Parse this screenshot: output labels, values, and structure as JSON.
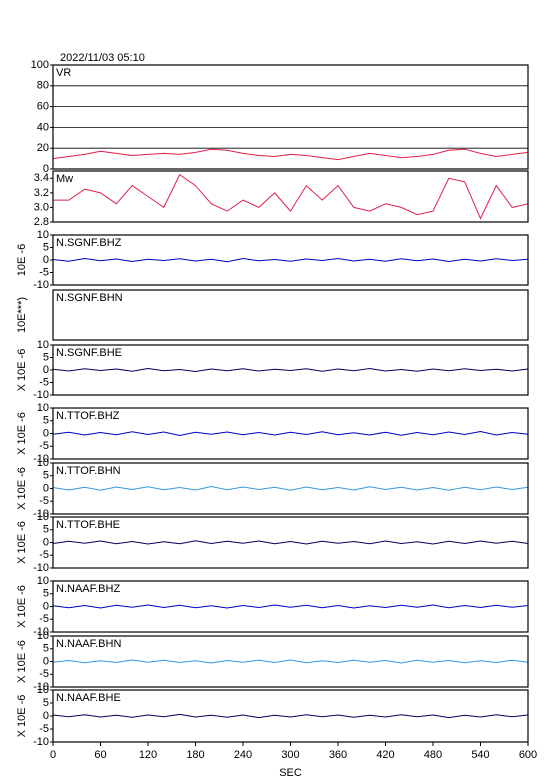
{
  "chart_data": [
    {
      "type": "line",
      "title": "VR",
      "header": "2022/11/03 05:10",
      "ylim": [
        0,
        100
      ],
      "yticks": [
        0,
        20,
        40,
        60,
        80,
        100
      ],
      "grid": true,
      "xlim": [
        0,
        600
      ],
      "x": [
        0,
        20,
        40,
        60,
        80,
        100,
        120,
        140,
        160,
        180,
        200,
        220,
        240,
        260,
        280,
        300,
        320,
        340,
        360,
        380,
        400,
        420,
        440,
        460,
        480,
        500,
        520,
        540,
        560,
        580,
        600
      ],
      "series": [
        {
          "color": "#e0204a",
          "values": [
            10,
            12,
            14,
            17,
            15,
            13,
            14,
            15,
            14,
            16,
            19,
            18,
            15,
            13,
            12,
            14,
            13,
            11,
            9,
            12,
            15,
            13,
            11,
            12,
            14,
            18,
            19,
            15,
            12,
            14,
            16
          ]
        }
      ]
    },
    {
      "type": "line",
      "title": "Mw",
      "ylim": [
        2.8,
        3.5
      ],
      "yticks": [
        2.8,
        {
          "value": 3,
          "label": "3.0"
        },
        3.2,
        3.4
      ],
      "xlim": [
        0,
        600
      ],
      "x": [
        0,
        20,
        40,
        60,
        80,
        100,
        120,
        140,
        160,
        180,
        200,
        220,
        240,
        260,
        280,
        300,
        320,
        340,
        360,
        380,
        400,
        420,
        440,
        460,
        480,
        500,
        520,
        540,
        560,
        580,
        600
      ],
      "series": [
        {
          "color": "#e0204a",
          "values": [
            3.1,
            3.1,
            3.25,
            3.2,
            3.05,
            3.3,
            3.15,
            3.0,
            3.45,
            3.3,
            3.05,
            2.95,
            3.1,
            3.0,
            3.2,
            2.95,
            3.3,
            3.1,
            3.3,
            3.0,
            2.95,
            3.05,
            3.0,
            2.9,
            2.95,
            3.4,
            3.35,
            2.85,
            3.3,
            3.0,
            3.05
          ]
        }
      ]
    },
    {
      "type": "line",
      "title": "N.SGNF.BHZ",
      "ylabel": "10E -6",
      "ylim": [
        -10,
        10
      ],
      "yticks": [
        -10,
        -5,
        0,
        5,
        10
      ],
      "xlim": [
        0,
        600
      ],
      "x": [
        0,
        20,
        40,
        60,
        80,
        100,
        120,
        140,
        160,
        180,
        200,
        220,
        240,
        260,
        280,
        300,
        320,
        340,
        360,
        380,
        400,
        420,
        440,
        460,
        480,
        500,
        520,
        540,
        560,
        580,
        600
      ],
      "series": [
        {
          "color": "#0000c0",
          "values": [
            0.2,
            -0.5,
            0.6,
            -0.3,
            0.4,
            -0.6,
            0.3,
            -0.2,
            0.5,
            -0.4,
            0.3,
            -0.7,
            0.6,
            -0.3,
            0.2,
            -0.5,
            0.4,
            -0.2,
            0.6,
            -0.4,
            0.3,
            -0.5,
            0.5,
            -0.3,
            0.4,
            -0.6,
            0.3,
            -0.4,
            0.5,
            -0.2,
            0.3
          ]
        }
      ]
    },
    {
      "type": "line",
      "title": "N.SGNF.BHN",
      "ylabel": "10E***)",
      "xlim": [
        0,
        600
      ]
    },
    {
      "type": "line",
      "title": "N.SGNF.BHE",
      "ylabel": "X 10E -6",
      "ylim": [
        -10,
        10
      ],
      "yticks": [
        -10,
        -5,
        0,
        5,
        10
      ],
      "xlim": [
        0,
        600
      ],
      "x": [
        0,
        20,
        40,
        60,
        80,
        100,
        120,
        140,
        160,
        180,
        200,
        220,
        240,
        260,
        280,
        300,
        320,
        340,
        360,
        380,
        400,
        420,
        440,
        460,
        480,
        500,
        520,
        540,
        560,
        580,
        600
      ],
      "series": [
        {
          "color": "#000060",
          "values": [
            0.3,
            -0.4,
            0.5,
            -0.2,
            0.4,
            -0.5,
            0.6,
            -0.3,
            0.2,
            -0.6,
            0.4,
            -0.3,
            0.5,
            -0.4,
            0.3,
            -0.2,
            0.5,
            -0.5,
            0.4,
            -0.3,
            0.6,
            -0.4,
            0.2,
            -0.5,
            0.4,
            -0.3,
            0.5,
            -0.2,
            0.3,
            -0.4,
            0.4
          ]
        }
      ]
    },
    {
      "type": "line",
      "title": "N.TTOF.BHZ",
      "ylabel": "X 10E -6",
      "ylim": [
        -10,
        10
      ],
      "yticks": [
        -10,
        -5,
        0,
        5,
        10
      ],
      "xlim": [
        0,
        600
      ],
      "x": [
        0,
        20,
        40,
        60,
        80,
        100,
        120,
        140,
        160,
        180,
        200,
        220,
        240,
        260,
        280,
        300,
        320,
        340,
        360,
        380,
        400,
        420,
        440,
        460,
        480,
        500,
        520,
        540,
        560,
        580,
        600
      ],
      "series": [
        {
          "color": "#0000c0",
          "values": [
            -0.3,
            0.5,
            -0.6,
            0.4,
            -0.5,
            0.7,
            -0.4,
            0.6,
            -0.8,
            0.5,
            -0.3,
            0.6,
            -0.5,
            0.4,
            -0.6,
            0.5,
            -0.4,
            0.7,
            -0.5,
            0.3,
            -0.6,
            0.5,
            -0.7,
            0.4,
            -0.5,
            0.6,
            -0.4,
            0.8,
            -0.6,
            0.4,
            -0.3
          ]
        }
      ]
    },
    {
      "type": "line",
      "title": "N.TTOF.BHN",
      "ylabel": "X 10E -6",
      "ylim": [
        -10,
        10
      ],
      "yticks": [
        -10,
        -5,
        0,
        5,
        10
      ],
      "xlim": [
        0,
        600
      ],
      "x": [
        0,
        20,
        40,
        60,
        80,
        100,
        120,
        140,
        160,
        180,
        200,
        220,
        240,
        260,
        280,
        300,
        320,
        340,
        360,
        380,
        400,
        420,
        440,
        460,
        480,
        500,
        520,
        540,
        560,
        580,
        600
      ],
      "series": [
        {
          "color": "#3399dd",
          "values": [
            0.4,
            -0.6,
            0.5,
            -0.7,
            0.6,
            -0.4,
            0.7,
            -0.5,
            0.4,
            -0.6,
            0.8,
            -0.5,
            0.6,
            -0.4,
            0.5,
            -0.7,
            0.6,
            -0.5,
            0.4,
            -0.6,
            0.7,
            -0.4,
            0.5,
            -0.6,
            0.4,
            -0.7,
            0.5,
            -0.5,
            0.6,
            -0.4,
            0.5
          ]
        }
      ]
    },
    {
      "type": "line",
      "title": "N.TTOF.BHE",
      "ylabel": "X 10E -6",
      "ylim": [
        -10,
        10
      ],
      "yticks": [
        -10,
        -5,
        0,
        5,
        10
      ],
      "xlim": [
        0,
        600
      ],
      "x": [
        0,
        20,
        40,
        60,
        80,
        100,
        120,
        140,
        160,
        180,
        200,
        220,
        240,
        260,
        280,
        300,
        320,
        340,
        360,
        380,
        400,
        420,
        440,
        460,
        480,
        500,
        520,
        540,
        560,
        580,
        600
      ],
      "series": [
        {
          "color": "#000060",
          "values": [
            -0.4,
            0.5,
            -0.3,
            0.6,
            -0.5,
            0.4,
            -0.6,
            0.3,
            -0.5,
            0.7,
            -0.4,
            0.5,
            -0.3,
            0.6,
            -0.5,
            0.4,
            -0.6,
            0.5,
            -0.3,
            0.4,
            -0.5,
            0.6,
            -0.4,
            0.3,
            -0.6,
            0.5,
            -0.4,
            0.6,
            -0.3,
            0.5,
            -0.4
          ]
        }
      ]
    },
    {
      "type": "line",
      "title": "N.NAAF.BHZ",
      "ylabel": "X 10E -6",
      "ylim": [
        -10,
        10
      ],
      "yticks": [
        -10,
        -5,
        0,
        5,
        10
      ],
      "xlim": [
        0,
        600
      ],
      "x": [
        0,
        20,
        40,
        60,
        80,
        100,
        120,
        140,
        160,
        180,
        200,
        220,
        240,
        260,
        280,
        300,
        320,
        340,
        360,
        380,
        400,
        420,
        440,
        460,
        480,
        500,
        520,
        540,
        560,
        580,
        600
      ],
      "series": [
        {
          "color": "#0000c0",
          "values": [
            0.3,
            -0.5,
            0.4,
            -0.6,
            0.5,
            -0.3,
            0.6,
            -0.4,
            0.5,
            -0.5,
            0.3,
            -0.6,
            0.4,
            -0.4,
            0.6,
            -0.3,
            0.5,
            -0.5,
            0.4,
            -0.6,
            0.3,
            -0.4,
            0.5,
            -0.3,
            0.6,
            -0.5,
            0.4,
            -0.4,
            0.5,
            -0.3,
            0.4
          ]
        }
      ]
    },
    {
      "type": "line",
      "title": "N.NAAF.BHN",
      "ylabel": "X 10E -6",
      "ylim": [
        -10,
        10
      ],
      "yticks": [
        -10,
        -5,
        0,
        5,
        10
      ],
      "xlim": [
        0,
        600
      ],
      "x": [
        0,
        20,
        40,
        60,
        80,
        100,
        120,
        140,
        160,
        180,
        200,
        220,
        240,
        260,
        280,
        300,
        320,
        340,
        360,
        380,
        400,
        420,
        440,
        460,
        480,
        500,
        520,
        540,
        560,
        580,
        600
      ],
      "series": [
        {
          "color": "#3399dd",
          "values": [
            -0.3,
            0.4,
            -0.5,
            0.3,
            -0.4,
            0.6,
            -0.3,
            0.5,
            -0.4,
            0.3,
            -0.6,
            0.4,
            -0.3,
            0.5,
            -0.4,
            0.6,
            -0.5,
            0.3,
            -0.4,
            0.5,
            -0.3,
            0.4,
            -0.6,
            0.5,
            -0.3,
            0.4,
            -0.5,
            0.3,
            -0.4,
            0.5,
            -0.3
          ]
        }
      ]
    },
    {
      "type": "line",
      "title": "N.NAAF.BHE",
      "ylabel": "X 10E -6",
      "xlabel": "SEC",
      "ylim": [
        -10,
        10
      ],
      "yticks": [
        -10,
        -5,
        0,
        5,
        10
      ],
      "xlim": [
        0,
        600
      ],
      "xticks": [
        0,
        60,
        120,
        180,
        240,
        300,
        360,
        420,
        480,
        540,
        600
      ],
      "x": [
        0,
        20,
        40,
        60,
        80,
        100,
        120,
        140,
        160,
        180,
        200,
        220,
        240,
        260,
        280,
        300,
        320,
        340,
        360,
        380,
        400,
        420,
        440,
        460,
        480,
        500,
        520,
        540,
        560,
        580,
        600
      ],
      "series": [
        {
          "color": "#000060",
          "values": [
            0.4,
            -0.3,
            0.5,
            -0.4,
            0.3,
            -0.5,
            0.4,
            -0.3,
            0.6,
            -0.4,
            0.3,
            -0.5,
            0.4,
            -0.6,
            0.3,
            -0.4,
            0.5,
            -0.3,
            0.4,
            -0.5,
            0.3,
            -0.4,
            0.5,
            -0.3,
            0.4,
            -0.6,
            0.3,
            -0.4,
            0.5,
            -0.3,
            0.4
          ]
        }
      ]
    }
  ]
}
